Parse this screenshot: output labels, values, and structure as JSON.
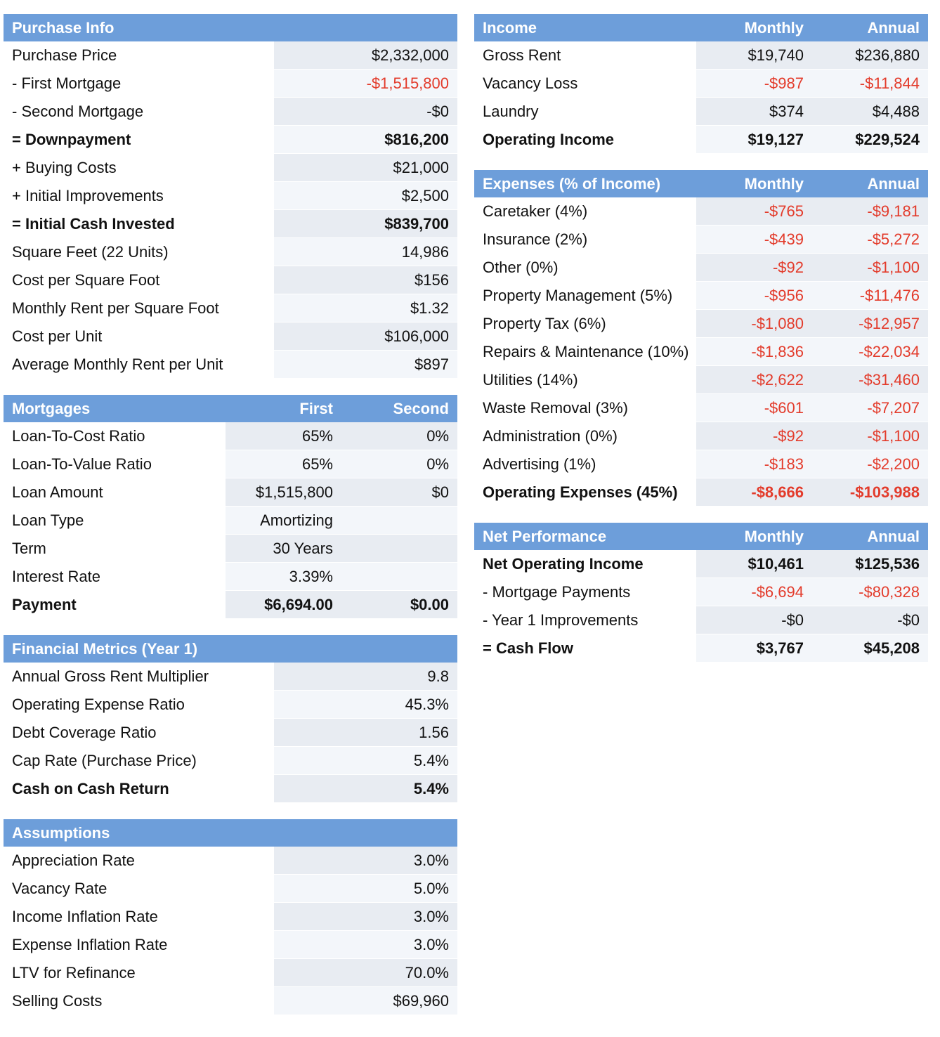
{
  "purchase_info": {
    "title": "Purchase Info",
    "rows": [
      {
        "label": "Purchase Price",
        "value": "$2,332,000",
        "neg": false,
        "bold": false
      },
      {
        "label": "- First Mortgage",
        "value": "-$1,515,800",
        "neg": true,
        "bold": false
      },
      {
        "label": "- Second Mortgage",
        "value": "-$0",
        "neg": false,
        "bold": false
      },
      {
        "label": "= Downpayment",
        "value": "$816,200",
        "neg": false,
        "bold": true
      },
      {
        "label": "+ Buying Costs",
        "value": "$21,000",
        "neg": false,
        "bold": false
      },
      {
        "label": "+ Initial Improvements",
        "value": "$2,500",
        "neg": false,
        "bold": false
      },
      {
        "label": "= Initial Cash Invested",
        "value": "$839,700",
        "neg": false,
        "bold": true
      },
      {
        "label": "Square Feet (22 Units)",
        "value": "14,986",
        "neg": false,
        "bold": false
      },
      {
        "label": "Cost per Square Foot",
        "value": "$156",
        "neg": false,
        "bold": false
      },
      {
        "label": "Monthly Rent per Square Foot",
        "value": "$1.32",
        "neg": false,
        "bold": false
      },
      {
        "label": "Cost per Unit",
        "value": "$106,000",
        "neg": false,
        "bold": false
      },
      {
        "label": "Average Monthly Rent per Unit",
        "value": "$897",
        "neg": false,
        "bold": false
      }
    ]
  },
  "mortgages": {
    "title": "Mortgages",
    "col1": "First",
    "col2": "Second",
    "rows": [
      {
        "label": "Loan-To-Cost Ratio",
        "first": "65%",
        "second": "0%",
        "bold": false
      },
      {
        "label": "Loan-To-Value Ratio",
        "first": "65%",
        "second": "0%",
        "bold": false
      },
      {
        "label": "Loan Amount",
        "first": "$1,515,800",
        "second": "$0",
        "bold": false
      },
      {
        "label": "Loan Type",
        "first": "Amortizing",
        "second": "",
        "bold": false
      },
      {
        "label": "Term",
        "first": "30 Years",
        "second": "",
        "bold": false
      },
      {
        "label": "Interest Rate",
        "first": "3.39%",
        "second": "",
        "bold": false
      },
      {
        "label": "Payment",
        "first": "$6,694.00",
        "second": "$0.00",
        "bold": true
      }
    ]
  },
  "financial_metrics": {
    "title": "Financial Metrics (Year 1)",
    "rows": [
      {
        "label": "Annual Gross Rent Multiplier",
        "value": "9.8",
        "neg": false,
        "bold": false
      },
      {
        "label": "Operating Expense Ratio",
        "value": "45.3%",
        "neg": false,
        "bold": false
      },
      {
        "label": "Debt Coverage Ratio",
        "value": "1.56",
        "neg": false,
        "bold": false
      },
      {
        "label": "Cap Rate (Purchase Price)",
        "value": "5.4%",
        "neg": false,
        "bold": false
      },
      {
        "label": "Cash on Cash Return",
        "value": "5.4%",
        "neg": false,
        "bold": true
      }
    ]
  },
  "assumptions": {
    "title": "Assumptions",
    "rows": [
      {
        "label": "Appreciation Rate",
        "value": "3.0%",
        "neg": false,
        "bold": false
      },
      {
        "label": "Vacancy Rate",
        "value": "5.0%",
        "neg": false,
        "bold": false
      },
      {
        "label": "Income Inflation Rate",
        "value": "3.0%",
        "neg": false,
        "bold": false
      },
      {
        "label": "Expense Inflation Rate",
        "value": "3.0%",
        "neg": false,
        "bold": false
      },
      {
        "label": "LTV for Refinance",
        "value": "70.0%",
        "neg": false,
        "bold": false
      },
      {
        "label": "Selling Costs",
        "value": "$69,960",
        "neg": false,
        "bold": false
      }
    ]
  },
  "income": {
    "title": "Income",
    "col1": "Monthly",
    "col2": "Annual",
    "rows": [
      {
        "label": "Gross Rent",
        "monthly": "$19,740",
        "annual": "$236,880",
        "neg": false,
        "bold": false
      },
      {
        "label": "Vacancy Loss",
        "monthly": "-$987",
        "annual": "-$11,844",
        "neg": true,
        "bold": false
      },
      {
        "label": "Laundry",
        "monthly": "$374",
        "annual": "$4,488",
        "neg": false,
        "bold": false
      },
      {
        "label": "Operating Income",
        "monthly": "$19,127",
        "annual": "$229,524",
        "neg": false,
        "bold": true
      }
    ]
  },
  "expenses": {
    "title": "Expenses (% of Income)",
    "col1": "Monthly",
    "col2": "Annual",
    "rows": [
      {
        "label": "Caretaker (4%)",
        "monthly": "-$765",
        "annual": "-$9,181",
        "neg": true,
        "bold": false
      },
      {
        "label": "Insurance (2%)",
        "monthly": "-$439",
        "annual": "-$5,272",
        "neg": true,
        "bold": false
      },
      {
        "label": "Other (0%)",
        "monthly": "-$92",
        "annual": "-$1,100",
        "neg": true,
        "bold": false
      },
      {
        "label": "Property Management (5%)",
        "monthly": "-$956",
        "annual": "-$11,476",
        "neg": true,
        "bold": false
      },
      {
        "label": "Property Tax (6%)",
        "monthly": "-$1,080",
        "annual": "-$12,957",
        "neg": true,
        "bold": false
      },
      {
        "label": "Repairs & Maintenance (10%)",
        "monthly": "-$1,836",
        "annual": "-$22,034",
        "neg": true,
        "bold": false
      },
      {
        "label": "Utilities (14%)",
        "monthly": "-$2,622",
        "annual": "-$31,460",
        "neg": true,
        "bold": false
      },
      {
        "label": "Waste Removal (3%)",
        "monthly": "-$601",
        "annual": "-$7,207",
        "neg": true,
        "bold": false
      },
      {
        "label": "Administration (0%)",
        "monthly": "-$92",
        "annual": "-$1,100",
        "neg": true,
        "bold": false
      },
      {
        "label": "Advertising (1%)",
        "monthly": "-$183",
        "annual": "-$2,200",
        "neg": true,
        "bold": false
      },
      {
        "label": "Operating Expenses (45%)",
        "monthly": "-$8,666",
        "annual": "-$103,988",
        "neg": true,
        "bold": true
      }
    ]
  },
  "net_performance": {
    "title": "Net Performance",
    "col1": "Monthly",
    "col2": "Annual",
    "rows": [
      {
        "label": "Net Operating Income",
        "monthly": "$10,461",
        "annual": "$125,536",
        "neg": false,
        "bold": true
      },
      {
        "label": "- Mortgage Payments",
        "monthly": "-$6,694",
        "annual": "-$80,328",
        "neg": true,
        "bold": false
      },
      {
        "label": "- Year 1 Improvements",
        "monthly": "-$0",
        "annual": "-$0",
        "neg": false,
        "bold": false
      },
      {
        "label": "= Cash Flow",
        "monthly": "$3,767",
        "annual": "$45,208",
        "neg": false,
        "bold": true
      }
    ]
  },
  "colors": {
    "header_bg": "#6d9eda",
    "negative": "#e33b2b",
    "row_shade_a": "#e8ecf2",
    "row_shade_b": "#f3f6fa"
  }
}
